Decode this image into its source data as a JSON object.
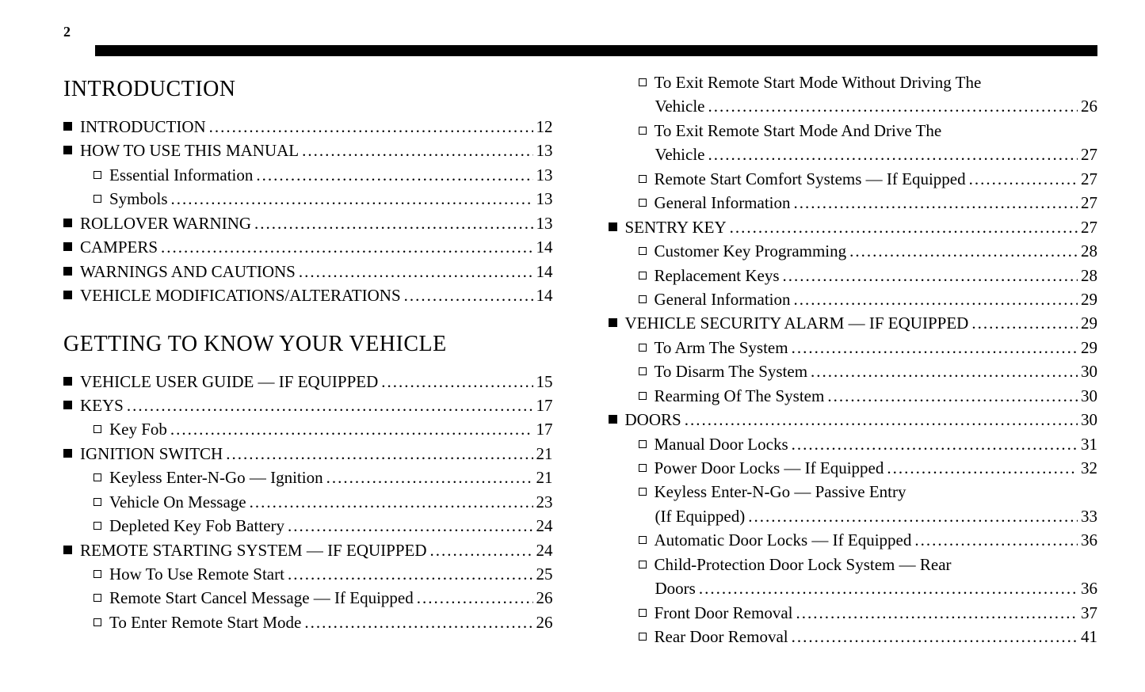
{
  "page_number": "2",
  "colors": {
    "bg": "#ffffff",
    "text": "#000000",
    "bar": "#000000"
  },
  "typography": {
    "body_font": "Georgia serif",
    "title_fontsize": 28,
    "item_fontsize": 21
  },
  "sections": [
    {
      "title": "INTRODUCTION",
      "items": [
        {
          "level": 0,
          "label": "INTRODUCTION",
          "page": "12"
        },
        {
          "level": 0,
          "label": "HOW TO USE THIS MANUAL",
          "page": "13"
        },
        {
          "level": 1,
          "label": "Essential Information",
          "page": "13"
        },
        {
          "level": 1,
          "label": "Symbols",
          "page": "13"
        },
        {
          "level": 0,
          "label": "ROLLOVER WARNING",
          "page": "13"
        },
        {
          "level": 0,
          "label": "CAMPERS",
          "page": "14"
        },
        {
          "level": 0,
          "label": "WARNINGS AND CAUTIONS",
          "page": "14"
        },
        {
          "level": 0,
          "label": "VEHICLE MODIFICATIONS/ALTERATIONS",
          "page": "14"
        }
      ]
    },
    {
      "title": "GETTING TO KNOW YOUR VEHICLE",
      "items": [
        {
          "level": 0,
          "label": "VEHICLE USER GUIDE — IF EQUIPPED",
          "page": "15"
        },
        {
          "level": 0,
          "label": "KEYS",
          "page": "17"
        },
        {
          "level": 1,
          "label": "Key Fob",
          "page": "17"
        },
        {
          "level": 0,
          "label": "IGNITION SWITCH",
          "page": "21"
        },
        {
          "level": 1,
          "label": "Keyless Enter-N-Go — Ignition",
          "page": "21"
        },
        {
          "level": 1,
          "label": "Vehicle On Message",
          "page": "23"
        },
        {
          "level": 1,
          "label": "Depleted Key Fob Battery",
          "page": "24"
        },
        {
          "level": 0,
          "label": "REMOTE STARTING SYSTEM — IF EQUIPPED",
          "page": "24"
        },
        {
          "level": 1,
          "label": "How To Use Remote Start",
          "page": "25"
        },
        {
          "level": 1,
          "label": "Remote Start Cancel Message — If Equipped",
          "page": "26"
        },
        {
          "level": 1,
          "label": "To Enter Remote Start Mode",
          "page": "26"
        }
      ]
    }
  ],
  "col2_items": [
    {
      "level": 1,
      "multi": true,
      "label_l1": "To Exit Remote Start Mode Without Driving The",
      "label_l2": "Vehicle",
      "page": "26"
    },
    {
      "level": 1,
      "multi": true,
      "label_l1": "To Exit Remote Start Mode And Drive The",
      "label_l2": "Vehicle",
      "page": "27"
    },
    {
      "level": 1,
      "label": "Remote Start Comfort Systems — If Equipped",
      "page": "27"
    },
    {
      "level": 1,
      "label": "General Information",
      "page": "27"
    },
    {
      "level": 0,
      "label": "SENTRY KEY",
      "page": "27"
    },
    {
      "level": 1,
      "label": "Customer Key Programming",
      "page": "28"
    },
    {
      "level": 1,
      "label": "Replacement Keys",
      "page": "28"
    },
    {
      "level": 1,
      "label": "General Information",
      "page": "29"
    },
    {
      "level": 0,
      "label": "VEHICLE SECURITY ALARM — IF EQUIPPED",
      "page": "29"
    },
    {
      "level": 1,
      "label": "To Arm The System",
      "page": "29"
    },
    {
      "level": 1,
      "label": "To Disarm The System",
      "page": "30"
    },
    {
      "level": 1,
      "label": "Rearming Of The System",
      "page": "30"
    },
    {
      "level": 0,
      "label": "DOORS",
      "page": "30"
    },
    {
      "level": 1,
      "label": "Manual Door Locks",
      "page": "31"
    },
    {
      "level": 1,
      "label": "Power Door Locks — If Equipped",
      "page": "32"
    },
    {
      "level": 1,
      "multi": true,
      "label_l1": "Keyless Enter-N-Go — Passive Entry",
      "label_l2": "(If Equipped)",
      "page": "33"
    },
    {
      "level": 1,
      "label": "Automatic Door Locks — If Equipped",
      "page": "36"
    },
    {
      "level": 1,
      "multi": true,
      "label_l1": "Child-Protection Door Lock System — Rear",
      "label_l2": "Doors",
      "page": "36"
    },
    {
      "level": 1,
      "label": "Front Door Removal",
      "page": "37"
    },
    {
      "level": 1,
      "label": "Rear Door Removal",
      "page": "41"
    }
  ]
}
